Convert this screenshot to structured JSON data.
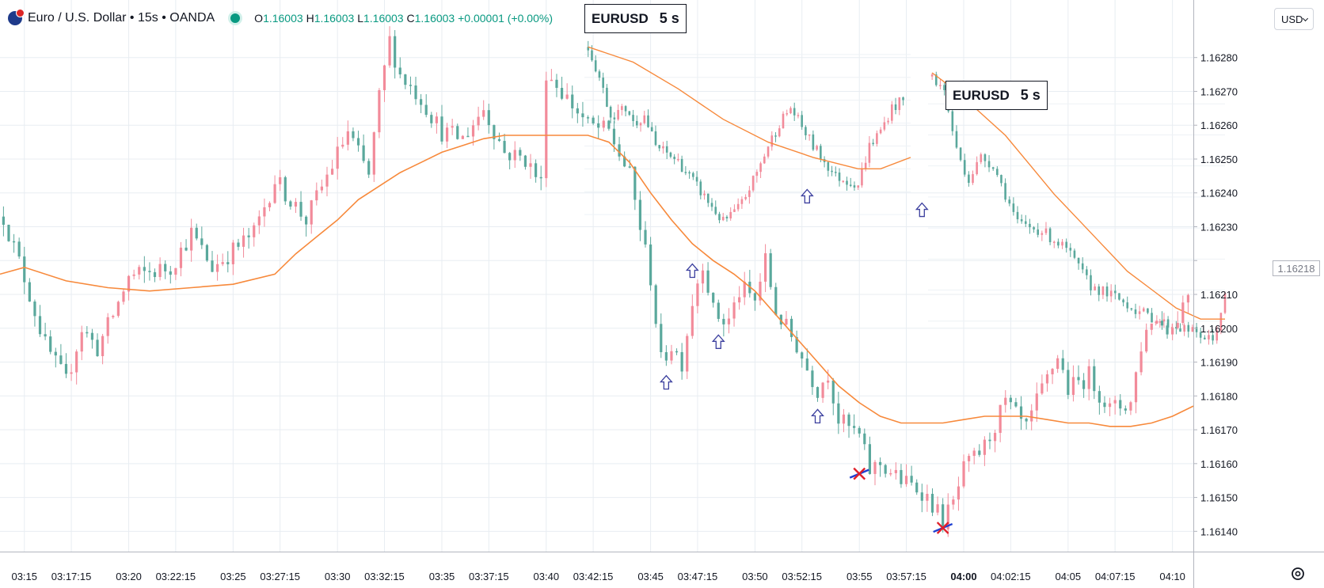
{
  "legend": {
    "symbol_title": "Euro / U.S. Dollar • 15s • OANDA",
    "open_label": "O",
    "open": "1.16003",
    "high_label": "H",
    "high": "1.16003",
    "low_label": "L",
    "low": "1.16003",
    "close_label": "C",
    "close": "1.16003",
    "change": "+0.00001 (+0.00%)"
  },
  "labels": [
    {
      "symbol": "EURUSD",
      "interval": "5 s"
    },
    {
      "symbol": "EURUSD",
      "interval": "5 s"
    }
  ],
  "price_scale": {
    "currency": "USD",
    "last_price_tag": "1.16218"
  },
  "colors": {
    "up": "#f28b9a",
    "down": "#5aa89c",
    "ma": "#f7893b",
    "grid": "#e8edf2",
    "arrow": "#3b3f9e",
    "cross_red": "#e01f2a",
    "cross_blue": "#1f3fd1"
  },
  "icons": {
    "settings": "gear-icon",
    "symbol": "flag-icon",
    "status": "market-status-dot"
  },
  "chart_data": {
    "type": "candlestick",
    "ylim": [
      1.16134,
      1.16297
    ],
    "xlim": [
      "03:13:50",
      "04:11:00"
    ],
    "y_ticks": [
      1.1614,
      1.1615,
      1.1616,
      1.1617,
      1.1618,
      1.1619,
      1.162,
      1.1621,
      1.1622,
      1.1623,
      1.1624,
      1.1625,
      1.1626,
      1.1627,
      1.1628
    ],
    "y_tick_labels": [
      "1.16140",
      "1.16150",
      "1.16160",
      "1.16170",
      "1.16180",
      "1.16190",
      "1.16200",
      "1.16210",
      "",
      "1.16230",
      "1.16240",
      "1.16250",
      "1.16260",
      "1.16270",
      "1.16280"
    ],
    "x_ticks": [
      "03:15",
      "03:17:15",
      "03:20",
      "03:22:15",
      "03:25",
      "03:27:15",
      "03:30",
      "03:32:15",
      "03:35",
      "03:37:15",
      "03:40",
      "03:42:15",
      "03:45",
      "03:47:15",
      "03:50",
      "03:52:15",
      "03:55",
      "03:57:15",
      "04:00",
      "04:02:15",
      "04:05",
      "04:07:15",
      "04:10"
    ],
    "bold_tick": "04:00",
    "close_path": [
      [
        "03:14:00",
        1.16233
      ],
      [
        "03:15:00",
        1.16215
      ],
      [
        "03:16:00",
        1.16195
      ],
      [
        "03:17:00",
        1.16184
      ],
      [
        "03:17:45",
        1.162
      ],
      [
        "03:18:30",
        1.16194
      ],
      [
        "03:19:20",
        1.16205
      ],
      [
        "03:20:00",
        1.16215
      ],
      [
        "03:22:00",
        1.16218
      ],
      [
        "03:23:00",
        1.16228
      ],
      [
        "03:24:00",
        1.16218
      ],
      [
        "03:26:00",
        1.16228
      ],
      [
        "03:27:00",
        1.16244
      ],
      [
        "03:28:30",
        1.16232
      ],
      [
        "03:29:30",
        1.16245
      ],
      [
        "03:30:30",
        1.16258
      ],
      [
        "03:31:30",
        1.16245
      ],
      [
        "03:32:00",
        1.16268
      ],
      [
        "03:32:30",
        1.16285
      ],
      [
        "03:33:00",
        1.16275
      ],
      [
        "03:34:00",
        1.16268
      ],
      [
        "03:35:00",
        1.16258
      ],
      [
        "03:36:00",
        1.16256
      ],
      [
        "03:37:00",
        1.16265
      ],
      [
        "03:38:00",
        1.16252
      ],
      [
        "03:39:00",
        1.1625
      ],
      [
        "03:39:50",
        1.16242
      ],
      [
        "03:40:00",
        1.16276
      ],
      [
        "03:41:00",
        1.16268
      ],
      [
        "03:42:00",
        1.1626
      ],
      [
        "03:43:00",
        1.16258
      ],
      [
        "03:44:00",
        1.16245
      ],
      [
        "03:45:00",
        1.16215
      ],
      [
        "03:45:30",
        1.1619
      ],
      [
        "03:46:00",
        1.16195
      ],
      [
        "03:46:30",
        1.1619
      ],
      [
        "03:47:00",
        1.16208
      ],
      [
        "03:47:30",
        1.1622
      ],
      [
        "03:48:00",
        1.16205
      ],
      [
        "03:48:40",
        1.16201
      ],
      [
        "03:49:20",
        1.16212
      ],
      [
        "03:50:00",
        1.16208
      ],
      [
        "03:50:30",
        1.1622
      ],
      [
        "03:51:00",
        1.16205
      ],
      [
        "03:52:00",
        1.16195
      ],
      [
        "03:52:30",
        1.16188
      ],
      [
        "03:53:00",
        1.16182
      ],
      [
        "03:53:30",
        1.16187
      ],
      [
        "03:54:00",
        1.16173
      ],
      [
        "03:55:00",
        1.16168
      ],
      [
        "03:55:30",
        1.16158
      ],
      [
        "03:56:00",
        1.1616
      ],
      [
        "03:57:00",
        1.16155
      ],
      [
        "03:58:00",
        1.16152
      ],
      [
        "03:58:30",
        1.16148
      ],
      [
        "03:59:00",
        1.16143
      ],
      [
        "03:59:30",
        1.16148
      ],
      [
        "04:00:00",
        1.16158
      ],
      [
        "04:01:00",
        1.16165
      ],
      [
        "04:02:00",
        1.16178
      ],
      [
        "04:03:00",
        1.1617
      ],
      [
        "04:03:30",
        1.16178
      ],
      [
        "04:04:00",
        1.16185
      ],
      [
        "04:04:30",
        1.16192
      ],
      [
        "04:05:00",
        1.16182
      ],
      [
        "04:06:00",
        1.16186
      ],
      [
        "04:07:00",
        1.16176
      ],
      [
        "04:08:00",
        1.16178
      ],
      [
        "04:08:30",
        1.16195
      ],
      [
        "04:09:00",
        1.16203
      ],
      [
        "04:10:00",
        1.162
      ],
      [
        "04:10:50",
        1.16212
      ]
    ],
    "moving_average": [
      [
        "03:13:50",
        1.16216
      ],
      [
        "03:15:00",
        1.16218
      ],
      [
        "03:17:00",
        1.16214
      ],
      [
        "03:19:00",
        1.16212
      ],
      [
        "03:21:00",
        1.16211
      ],
      [
        "03:23:00",
        1.16212
      ],
      [
        "03:25:00",
        1.16213
      ],
      [
        "03:27:00",
        1.16216
      ],
      [
        "03:28:00",
        1.16222
      ],
      [
        "03:29:00",
        1.16227
      ],
      [
        "03:30:00",
        1.16232
      ],
      [
        "03:31:00",
        1.16238
      ],
      [
        "03:32:00",
        1.16242
      ],
      [
        "03:33:00",
        1.16246
      ],
      [
        "03:34:00",
        1.16249
      ],
      [
        "03:35:00",
        1.16252
      ],
      [
        "03:36:00",
        1.16254
      ],
      [
        "03:37:00",
        1.16256
      ],
      [
        "03:38:00",
        1.16257
      ],
      [
        "03:39:00",
        1.16257
      ],
      [
        "03:40:00",
        1.16257
      ],
      [
        "03:41:00",
        1.16257
      ],
      [
        "03:42:00",
        1.16257
      ],
      [
        "03:43:00",
        1.16255
      ],
      [
        "03:44:00",
        1.16249
      ],
      [
        "03:45:00",
        1.1624
      ],
      [
        "03:46:00",
        1.16232
      ],
      [
        "03:47:00",
        1.16225
      ],
      [
        "03:48:00",
        1.1622
      ],
      [
        "03:49:00",
        1.16216
      ],
      [
        "03:50:00",
        1.16211
      ],
      [
        "03:51:00",
        1.16204
      ],
      [
        "03:52:00",
        1.16197
      ],
      [
        "03:53:00",
        1.1619
      ],
      [
        "03:54:00",
        1.16183
      ],
      [
        "03:55:00",
        1.16178
      ],
      [
        "03:56:00",
        1.16174
      ],
      [
        "03:57:00",
        1.16172
      ],
      [
        "03:58:00",
        1.16172
      ],
      [
        "03:59:00",
        1.16172
      ],
      [
        "04:00:00",
        1.16173
      ],
      [
        "04:01:00",
        1.16174
      ],
      [
        "04:02:00",
        1.16174
      ],
      [
        "04:03:00",
        1.16174
      ],
      [
        "04:04:00",
        1.16173
      ],
      [
        "04:05:00",
        1.16172
      ],
      [
        "04:06:00",
        1.16172
      ],
      [
        "04:07:00",
        1.16171
      ],
      [
        "04:08:00",
        1.16171
      ],
      [
        "04:09:00",
        1.16172
      ],
      [
        "04:10:00",
        1.16174
      ],
      [
        "04:11:00",
        1.16177
      ]
    ],
    "inset_windows": [
      {
        "x_start": "03:39:50",
        "x_end": "03:54:20",
        "ylim": [
          1.16228,
          1.16282
        ],
        "close_path": [
          [
            "03:40:00",
            1.16278
          ],
          [
            "03:40:30",
            1.1627
          ],
          [
            "03:41:00",
            1.1626
          ],
          [
            "03:41:45",
            1.16262
          ],
          [
            "03:42:00",
            1.16258
          ],
          [
            "03:42:30",
            1.1626
          ],
          [
            "03:43:00",
            1.16252
          ],
          [
            "03:44:00",
            1.16248
          ],
          [
            "03:45:00",
            1.1624
          ],
          [
            "03:46:00",
            1.16232
          ],
          [
            "03:46:45",
            1.16236
          ],
          [
            "03:47:30",
            1.16245
          ],
          [
            "03:48:00",
            1.16252
          ],
          [
            "03:48:30",
            1.16258
          ],
          [
            "03:49:00",
            1.16262
          ],
          [
            "03:50:00",
            1.16252
          ],
          [
            "03:51:00",
            1.16244
          ],
          [
            "03:52:00",
            1.16242
          ],
          [
            "03:52:30",
            1.16252
          ],
          [
            "03:53:00",
            1.16256
          ],
          [
            "03:53:30",
            1.16262
          ],
          [
            "03:54:00",
            1.16264
          ]
        ],
        "moving_average": [
          [
            "03:40:00",
            1.16278
          ],
          [
            "03:42:00",
            1.16274
          ],
          [
            "03:44:00",
            1.16267
          ],
          [
            "03:46:00",
            1.16259
          ],
          [
            "03:48:00",
            1.16253
          ],
          [
            "03:50:00",
            1.16249
          ],
          [
            "03:52:00",
            1.16246
          ],
          [
            "03:53:00",
            1.16246
          ],
          [
            "03:54:20",
            1.16249
          ]
        ]
      },
      {
        "x_start": "03:55:20",
        "x_end": "04:07:30",
        "ylim": [
          1.16197,
          1.16273
        ],
        "close_path": [
          [
            "03:55:30",
            1.16272
          ],
          [
            "03:56:00",
            1.16268
          ],
          [
            "03:56:30",
            1.16252
          ],
          [
            "03:57:00",
            1.16244
          ],
          [
            "03:57:30",
            1.1625
          ],
          [
            "03:58:00",
            1.16248
          ],
          [
            "03:59:00",
            1.16232
          ],
          [
            "04:00:00",
            1.1623
          ],
          [
            "04:01:00",
            1.16225
          ],
          [
            "04:02:00",
            1.16215
          ],
          [
            "04:03:00",
            1.16212
          ],
          [
            "04:04:00",
            1.16208
          ],
          [
            "04:05:00",
            1.16205
          ],
          [
            "04:06:00",
            1.16203
          ],
          [
            "04:07:00",
            1.162
          ],
          [
            "04:07:30",
            1.16212
          ]
        ],
        "moving_average": [
          [
            "03:55:30",
            1.16273
          ],
          [
            "03:56:30",
            1.16268
          ],
          [
            "03:57:30",
            1.16262
          ],
          [
            "03:58:30",
            1.16256
          ],
          [
            "03:59:30",
            1.16248
          ],
          [
            "04:00:30",
            1.1624
          ],
          [
            "04:01:30",
            1.16233
          ],
          [
            "04:02:30",
            1.16226
          ],
          [
            "04:03:30",
            1.16219
          ],
          [
            "04:04:30",
            1.16214
          ],
          [
            "04:05:30",
            1.16209
          ],
          [
            "04:06:30",
            1.16206
          ],
          [
            "04:07:30",
            1.16206
          ]
        ]
      }
    ],
    "buy_arrows": [
      [
        "03:45:45",
        1.16186
      ],
      [
        "03:47:00",
        1.16219
      ],
      [
        "03:48:15",
        1.16198
      ],
      [
        "03:53:00",
        1.16176
      ],
      [
        "03:58:00",
        1.16237
      ],
      [
        "03:52:30",
        1.16241
      ]
    ],
    "cross_markers": [
      [
        "03:55:00",
        1.16157
      ],
      [
        "03:59:00",
        1.16141
      ]
    ]
  }
}
